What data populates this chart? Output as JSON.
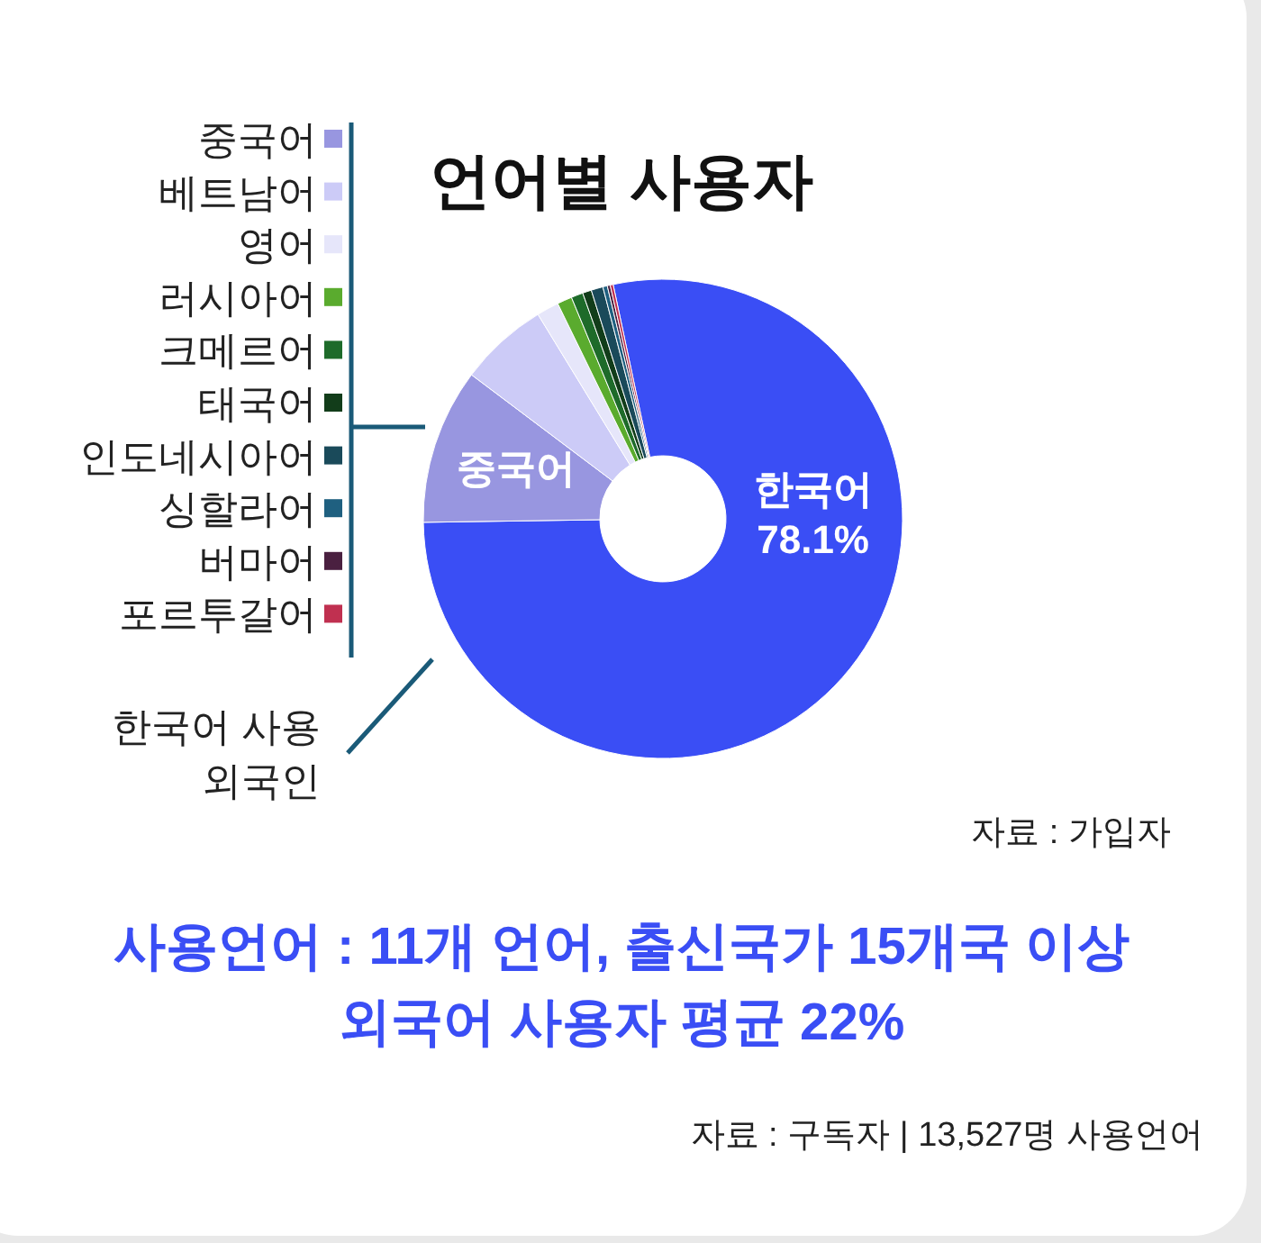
{
  "chart_data": {
    "type": "donut",
    "title": "언어별 사용자",
    "categories": [
      "한국어",
      "중국어",
      "베트남어",
      "영어",
      "러시아어",
      "크메르어",
      "태국어",
      "인도네시아어",
      "싱할라어",
      "버마어",
      "포르투갈어"
    ],
    "values": [
      78.1,
      10.5,
      6,
      1.5,
      1,
      0.8,
      0.6,
      0.8,
      0.3,
      0.2,
      0.2
    ],
    "colors": [
      "#3a4ef5",
      "#9896e0",
      "#cccbf7",
      "#e6e6fa",
      "#5aab2e",
      "#1e6b2a",
      "#123d1a",
      "#1a4a5a",
      "#1f6080",
      "#4a2040",
      "#c03050"
    ],
    "value_labels": [
      "78.1%",
      null,
      null,
      null,
      null,
      null,
      null,
      null,
      null,
      null,
      null
    ],
    "legend": "left",
    "annotations": [
      "한국어 사용 외국인",
      "자료 : 가입자",
      "사용언어 : 11개 언어, 출신국가 15개국 이상",
      "외국어 사용자 평균  22%",
      "자료 : 구독자 | 13,527명 사용언어"
    ]
  }
}
